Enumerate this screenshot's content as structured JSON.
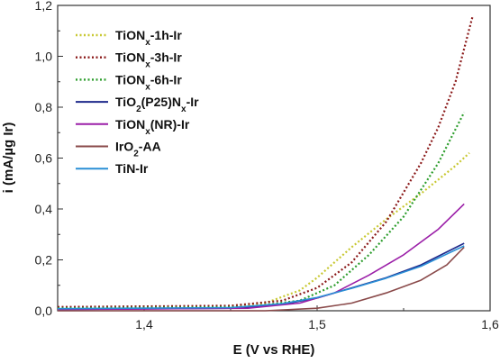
{
  "chart_data": {
    "type": "line",
    "title": "",
    "xlabel": "E (V vs RHE)",
    "ylabel": "i (mA/µg Ir)",
    "xlim": [
      1.35,
      1.6
    ],
    "ylim": [
      0.0,
      1.2
    ],
    "x_ticks": [
      1.4,
      1.5,
      1.6
    ],
    "x_tick_labels": [
      "1,4",
      "1,5",
      "1,6"
    ],
    "y_ticks": [
      0.0,
      0.2,
      0.4,
      0.6,
      0.8,
      1.0,
      1.2
    ],
    "y_tick_labels": [
      "0,0",
      "0,2",
      "0,4",
      "0,6",
      "0,8",
      "1,0",
      "1,2"
    ],
    "grid": false,
    "legend_position": "top-left",
    "series": [
      {
        "base": "TiON",
        "sub": "x",
        "suffix": "-1h-Ir",
        "color": "#c8c832",
        "style": "dotted",
        "x": [
          1.35,
          1.45,
          1.47,
          1.49,
          1.5,
          1.52,
          1.54,
          1.56,
          1.58,
          1.588
        ],
        "y": [
          0.01,
          0.015,
          0.03,
          0.08,
          0.13,
          0.25,
          0.36,
          0.46,
          0.57,
          0.62
        ]
      },
      {
        "base": "TiON",
        "sub": "x",
        "suffix": "-3h-Ir",
        "color": "#8b1a1a",
        "style": "dotted",
        "x": [
          1.35,
          1.45,
          1.48,
          1.5,
          1.52,
          1.54,
          1.56,
          1.57,
          1.58,
          1.59
        ],
        "y": [
          0.015,
          0.02,
          0.04,
          0.09,
          0.19,
          0.35,
          0.58,
          0.72,
          0.9,
          1.16
        ]
      },
      {
        "base": "TiON",
        "sub": "x",
        "suffix": "-6h-Ir",
        "color": "#2e9e2e",
        "style": "dotted",
        "x": [
          1.35,
          1.46,
          1.49,
          1.51,
          1.53,
          1.55,
          1.57,
          1.585
        ],
        "y": [
          0.01,
          0.015,
          0.04,
          0.1,
          0.22,
          0.37,
          0.58,
          0.78
        ]
      },
      {
        "base": "TiO",
        "sub": "2",
        "suffix": "(P25)N",
        "sub2": "x",
        "suffix2": "-Ir",
        "color": "#1f2a8c",
        "style": "solid",
        "x": [
          1.35,
          1.45,
          1.48,
          1.5,
          1.52,
          1.54,
          1.56,
          1.585
        ],
        "y": [
          0.005,
          0.01,
          0.025,
          0.05,
          0.09,
          0.13,
          0.18,
          0.265
        ]
      },
      {
        "base": "TiON",
        "sub": "x",
        "suffix": "(NR)-Ir",
        "color": "#9b1fa8",
        "style": "solid",
        "x": [
          1.35,
          1.46,
          1.49,
          1.51,
          1.53,
          1.55,
          1.57,
          1.585
        ],
        "y": [
          0.005,
          0.01,
          0.03,
          0.07,
          0.14,
          0.22,
          0.32,
          0.42
        ]
      },
      {
        "base": "IrO",
        "sub": "2",
        "suffix": "-AA",
        "color": "#8a4a4a",
        "style": "solid",
        "x": [
          1.35,
          1.47,
          1.5,
          1.52,
          1.54,
          1.56,
          1.575,
          1.585
        ],
        "y": [
          0.0,
          0.0,
          0.01,
          0.03,
          0.07,
          0.12,
          0.18,
          0.25
        ]
      },
      {
        "base": "TiN-Ir",
        "sub": "",
        "suffix": "",
        "color": "#2a8fd6",
        "style": "solid",
        "x": [
          1.35,
          1.45,
          1.48,
          1.5,
          1.52,
          1.54,
          1.56,
          1.585
        ],
        "y": [
          0.008,
          0.012,
          0.028,
          0.052,
          0.088,
          0.128,
          0.175,
          0.255
        ]
      }
    ]
  }
}
